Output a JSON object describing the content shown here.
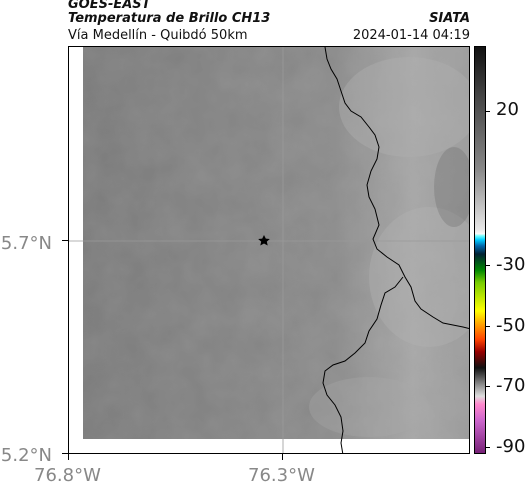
{
  "header": {
    "satellite": "GOES-EAST",
    "product": "Temperatura de Brillo CH13",
    "route": "Vía Medellín - Quibdó 50km",
    "organization": "SIATA",
    "timestamp": "2024-01-14 04:19"
  },
  "map": {
    "latitude_labels": [
      "5.7°N",
      "5.2°N"
    ],
    "longitude_labels": [
      "76.8°W",
      "76.3°W"
    ],
    "marker": "star-icon",
    "colors": {
      "background_gray": "#7a7a7a",
      "boundary": "#000000"
    }
  },
  "colorbar": {
    "tick_labels": [
      "20",
      "-30",
      "-50",
      "-70",
      "-90"
    ]
  }
}
